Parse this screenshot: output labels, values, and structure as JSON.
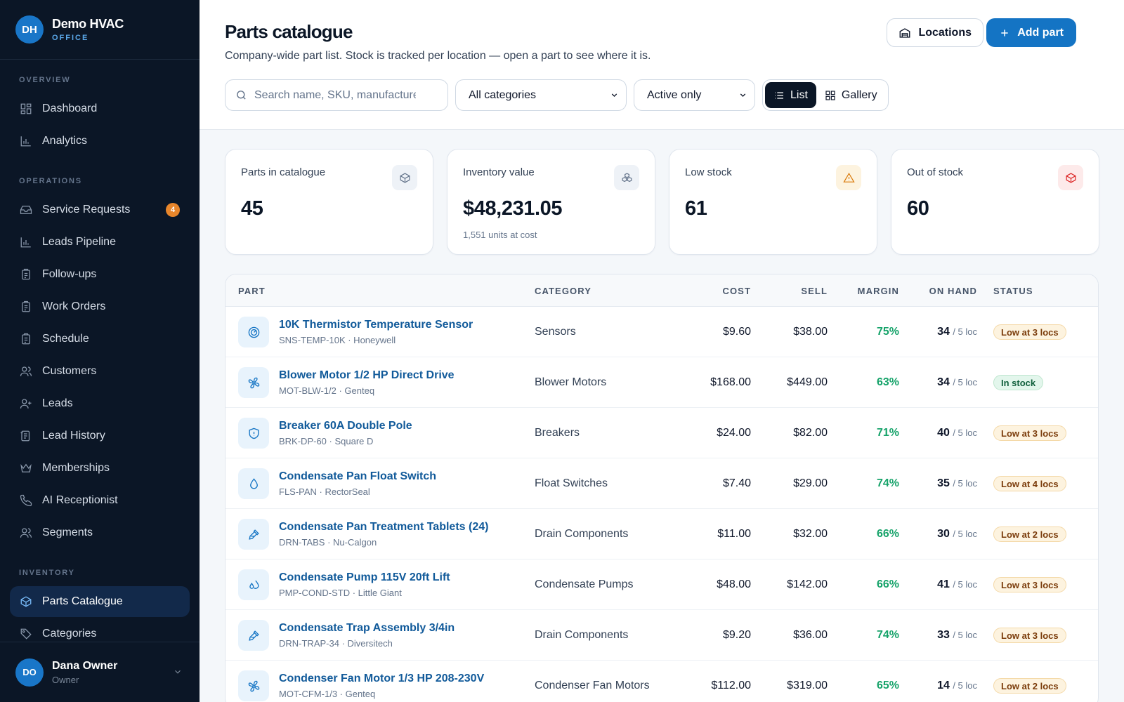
{
  "brand": {
    "initials": "DH",
    "name": "Demo HVAC",
    "sub": "OFFICE"
  },
  "nav": {
    "overview_label": "OVERVIEW",
    "overview": [
      {
        "label": "Dashboard",
        "icon": "grid-icon"
      },
      {
        "label": "Analytics",
        "icon": "bar-chart-icon"
      }
    ],
    "operations_label": "OPERATIONS",
    "operations": [
      {
        "label": "Service Requests",
        "icon": "inbox-icon",
        "badge": "4"
      },
      {
        "label": "Leads Pipeline",
        "icon": "bar-chart-icon"
      },
      {
        "label": "Follow-ups",
        "icon": "clipboard-icon"
      },
      {
        "label": "Work Orders",
        "icon": "clipboard-icon"
      },
      {
        "label": "Schedule",
        "icon": "clipboard-icon"
      },
      {
        "label": "Customers",
        "icon": "users-icon"
      },
      {
        "label": "Leads",
        "icon": "user-plus-icon"
      },
      {
        "label": "Lead History",
        "icon": "history-icon"
      },
      {
        "label": "Memberships",
        "icon": "crown-icon"
      },
      {
        "label": "AI Receptionist",
        "icon": "phone-icon"
      },
      {
        "label": "Segments",
        "icon": "users-icon"
      }
    ],
    "inventory_label": "INVENTORY",
    "inventory": [
      {
        "label": "Parts Catalogue",
        "icon": "box-icon",
        "active": true
      },
      {
        "label": "Categories",
        "icon": "tag-icon"
      }
    ]
  },
  "user": {
    "initials": "DO",
    "name": "Dana Owner",
    "role": "Owner"
  },
  "header": {
    "title": "Parts catalogue",
    "subtitle": "Company-wide part list. Stock is tracked per location — open a part to see where it is.",
    "locations_label": "Locations",
    "add_label": "Add part"
  },
  "filters": {
    "search_placeholder": "Search name, SKU, manufacturer",
    "category": "All categories",
    "active": "Active only",
    "view_list": "List",
    "view_gallery": "Gallery"
  },
  "stats": [
    {
      "label": "Parts in catalogue",
      "value": "45",
      "note": "",
      "icon": "box-icon",
      "color": "#64748b",
      "bg": "#eef2f7"
    },
    {
      "label": "Inventory value",
      "value": "$48,231.05",
      "note": "1,551 units at cost",
      "icon": "boxes-icon",
      "color": "#64748b",
      "bg": "#eef2f7"
    },
    {
      "label": "Low stock",
      "value": "61",
      "note": "",
      "icon": "warning-icon",
      "color": "#d97706",
      "bg": "#fdf3df"
    },
    {
      "label": "Out of stock",
      "value": "60",
      "note": "",
      "icon": "box-icon",
      "color": "#dc2626",
      "bg": "#fdeaea"
    }
  ],
  "table": {
    "headers": {
      "part": "PART",
      "category": "CATEGORY",
      "cost": "COST",
      "sell": "SELL",
      "margin": "MARGIN",
      "on_hand": "ON HAND",
      "status": "STATUS"
    },
    "rows": [
      {
        "name": "10K Thermistor Temperature Sensor",
        "sku": "SNS-TEMP-10K · Honeywell",
        "category": "Sensors",
        "cost": "$9.60",
        "sell": "$38.00",
        "margin": "75%",
        "on_hand": "34",
        "locs": "/ 5 loc",
        "status": "Low at 3 locs",
        "status_type": "low",
        "icon": "sensor-icon"
      },
      {
        "name": "Blower Motor 1/2 HP Direct Drive",
        "sku": "MOT-BLW-1/2 · Genteq",
        "category": "Blower Motors",
        "cost": "$168.00",
        "sell": "$449.00",
        "margin": "63%",
        "on_hand": "34",
        "locs": "/ 5 loc",
        "status": "In stock",
        "status_type": "ok",
        "icon": "fan-icon"
      },
      {
        "name": "Breaker 60A Double Pole",
        "sku": "BRK-DP-60 · Square D",
        "category": "Breakers",
        "cost": "$24.00",
        "sell": "$82.00",
        "margin": "71%",
        "on_hand": "40",
        "locs": "/ 5 loc",
        "status": "Low at 3 locs",
        "status_type": "low",
        "icon": "shield-icon"
      },
      {
        "name": "Condensate Pan Float Switch",
        "sku": "FLS-PAN · RectorSeal",
        "category": "Float Switches",
        "cost": "$7.40",
        "sell": "$29.00",
        "margin": "74%",
        "on_hand": "35",
        "locs": "/ 5 loc",
        "status": "Low at 4 locs",
        "status_type": "low",
        "icon": "droplet-icon"
      },
      {
        "name": "Condensate Pan Treatment Tablets (24)",
        "sku": "DRN-TABS · Nu-Calgon",
        "category": "Drain Components",
        "cost": "$11.00",
        "sell": "$32.00",
        "margin": "66%",
        "on_hand": "30",
        "locs": "/ 5 loc",
        "status": "Low at 2 locs",
        "status_type": "low",
        "icon": "pipette-icon"
      },
      {
        "name": "Condensate Pump 115V 20ft Lift",
        "sku": "PMP-COND-STD · Little Giant",
        "category": "Condensate Pumps",
        "cost": "$48.00",
        "sell": "$142.00",
        "margin": "66%",
        "on_hand": "41",
        "locs": "/ 5 loc",
        "status": "Low at 3 locs",
        "status_type": "low",
        "icon": "droplets-icon"
      },
      {
        "name": "Condensate Trap Assembly 3/4in",
        "sku": "DRN-TRAP-34 · Diversitech",
        "category": "Drain Components",
        "cost": "$9.20",
        "sell": "$36.00",
        "margin": "74%",
        "on_hand": "33",
        "locs": "/ 5 loc",
        "status": "Low at 3 locs",
        "status_type": "low",
        "icon": "pipette-icon"
      },
      {
        "name": "Condenser Fan Motor 1/3 HP 208-230V",
        "sku": "MOT-CFM-1/3 · Genteq",
        "category": "Condenser Fan Motors",
        "cost": "$112.00",
        "sell": "$319.00",
        "margin": "65%",
        "on_hand": "14",
        "locs": "/ 5 loc",
        "status": "Low at 2 locs",
        "status_type": "low",
        "icon": "fan-icon"
      }
    ]
  }
}
